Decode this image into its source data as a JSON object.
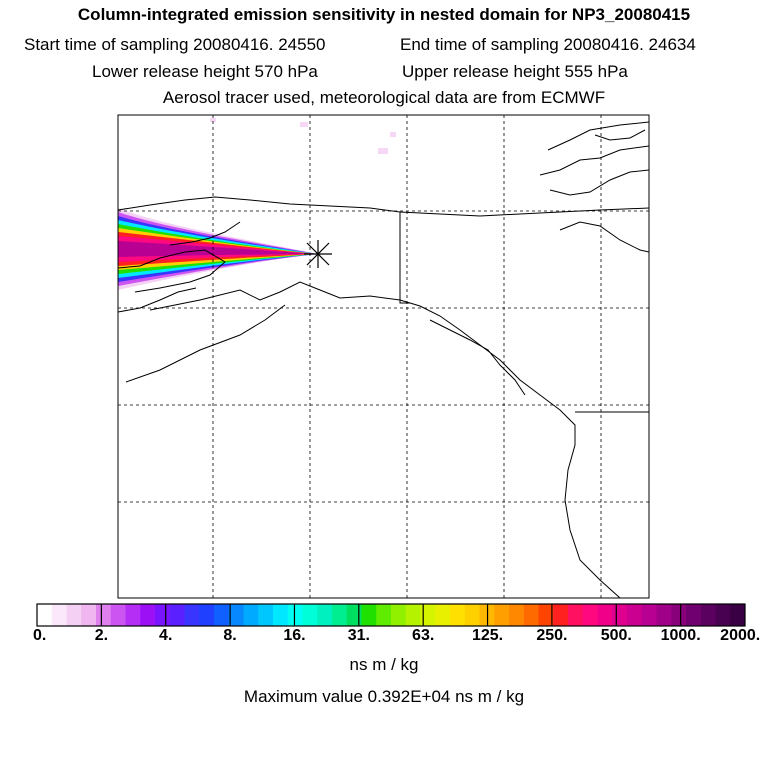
{
  "header": {
    "title": "Column-integrated emission sensitivity in nested domain for NP3_20080415",
    "start_time": "Start time of sampling 20080416. 24550",
    "end_time": "End time of sampling 20080416. 24634",
    "lower_release": "Lower release height  570 hPa",
    "upper_release": "Upper release height  555 hPa",
    "tracer_note": "Aerosol tracer used, meteorological data are from ECMWF"
  },
  "colorbar": {
    "ticks": [
      "0.",
      "2.",
      "4.",
      "8.",
      "16.",
      "31.",
      "63.",
      "125.",
      "250.",
      "500.",
      "1000.",
      "2000."
    ],
    "colors": [
      "#ffffff",
      "#fbe8fb",
      "#f5d0f5",
      "#efb6ef",
      "#df80ee",
      "#cc55f2",
      "#b52ef5",
      "#9b10f5",
      "#7a14ff",
      "#5a20ff",
      "#3a34ff",
      "#2040ff",
      "#1060ff",
      "#0888ff",
      "#00aaff",
      "#00c8ff",
      "#00e8ff",
      "#00fff2",
      "#00ffd8",
      "#00f0c0",
      "#00ee90",
      "#00e060",
      "#20e000",
      "#60ec00",
      "#90f000",
      "#b4f200",
      "#d4f400",
      "#e8f000",
      "#ffe000",
      "#ffd000",
      "#ffb800",
      "#ffa000",
      "#ff8800",
      "#ff6a00",
      "#ff4400",
      "#ff2020",
      "#ff1060",
      "#ff0880",
      "#f00088",
      "#e00090",
      "#cc0090",
      "#b80092",
      "#a00088",
      "#88007a",
      "#700070",
      "#5a005e",
      "#480050",
      "#3a0044"
    ],
    "unit": "ns m / kg",
    "max_value": "Maximum value  0.392E+04 ns m / kg"
  },
  "release_point": {
    "symbol": "star-cross"
  }
}
